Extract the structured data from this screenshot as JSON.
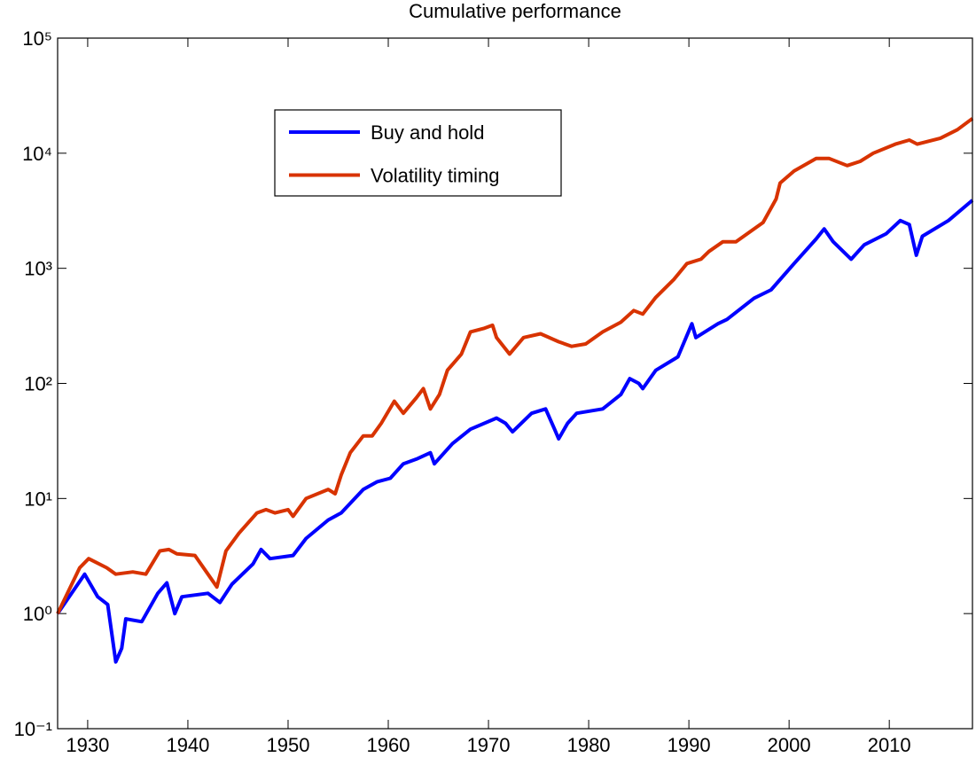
{
  "chart_data": {
    "type": "line",
    "title": "Cumulative performance",
    "log_y": true,
    "legend": "upper left",
    "xlim": [
      1927,
      2018.3
    ],
    "xticks": [
      1930,
      1940,
      1950,
      1960,
      1970,
      1980,
      1990,
      2000,
      2010
    ],
    "ylim": [
      0.1,
      100000
    ],
    "yticks": [
      {
        "value": 0.1,
        "label": "10⁻¹"
      },
      {
        "value": 1,
        "label": "10⁰"
      },
      {
        "value": 10,
        "label": "10¹"
      },
      {
        "value": 100,
        "label": "10²"
      },
      {
        "value": 1000,
        "label": "10³"
      },
      {
        "value": 10000,
        "label": "10⁴"
      },
      {
        "value": 100000,
        "label": "10⁵"
      }
    ],
    "series": [
      {
        "name": "Buy and hold",
        "color": "#0000ff",
        "x": [
          1927.0,
          1929.7,
          1931.0,
          1932.0,
          1932.8,
          1933.4,
          1933.8,
          1935.4,
          1937.0,
          1937.9,
          1938.7,
          1939.4,
          1942.0,
          1943.2,
          1944.4,
          1946.5,
          1947.3,
          1948.2,
          1950.5,
          1951.8,
          1954.0,
          1955.3,
          1957.5,
          1958.9,
          1960.2,
          1961.5,
          1962.8,
          1964.2,
          1964.6,
          1966.4,
          1968.2,
          1970.8,
          1971.7,
          1972.4,
          1974.3,
          1975.7,
          1976.6,
          1977.0,
          1977.9,
          1978.8,
          1981.4,
          1983.2,
          1984.1,
          1985.0,
          1985.4,
          1986.7,
          1988.9,
          1990.3,
          1990.7,
          1992.9,
          1993.8,
          1996.5,
          1998.2,
          2000.5,
          2002.7,
          2003.5,
          2004.4,
          2006.2,
          2007.5,
          2009.7,
          2011.1,
          2012.0,
          2012.7,
          2013.3,
          2015.9,
          2018.3
        ],
        "values": [
          1.0,
          2.2,
          1.4,
          1.2,
          0.38,
          0.5,
          0.9,
          0.85,
          1.5,
          1.85,
          1.0,
          1.4,
          1.5,
          1.25,
          1.8,
          2.7,
          3.6,
          3.0,
          3.2,
          4.5,
          6.5,
          7.5,
          12,
          14,
          15,
          20,
          22,
          25,
          20,
          30,
          40,
          50,
          45,
          38,
          55,
          60,
          40,
          33,
          45,
          55,
          60,
          80,
          110,
          100,
          90,
          130,
          170,
          330,
          250,
          330,
          360,
          550,
          650,
          1100,
          1800,
          2200,
          1700,
          1200,
          1600,
          2000,
          2600,
          2400,
          1300,
          1900,
          2600,
          3900
        ]
      },
      {
        "name": "Volatility timing",
        "color": "#d83300",
        "x": [
          1927.0,
          1929.2,
          1930.1,
          1931.9,
          1932.8,
          1934.5,
          1935.8,
          1937.2,
          1938.1,
          1938.9,
          1940.7,
          1942.0,
          1942.9,
          1943.8,
          1945.1,
          1946.9,
          1947.8,
          1948.7,
          1950.0,
          1950.5,
          1951.8,
          1954.0,
          1954.7,
          1955.3,
          1956.2,
          1957.5,
          1958.4,
          1959.3,
          1960.6,
          1961.5,
          1962.8,
          1963.5,
          1964.2,
          1965.1,
          1965.9,
          1967.3,
          1968.2,
          1969.5,
          1970.4,
          1970.8,
          1972.1,
          1973.5,
          1975.2,
          1977.0,
          1978.3,
          1979.7,
          1981.4,
          1983.2,
          1984.5,
          1985.4,
          1986.7,
          1988.5,
          1989.8,
          1991.2,
          1992.0,
          1993.4,
          1994.7,
          1997.4,
          1998.7,
          1999.1,
          2000.5,
          2002.7,
          2004.0,
          2005.8,
          2007.1,
          2008.4,
          2010.6,
          2012.0,
          2012.8,
          2015.1,
          2016.8,
          2018.3
        ],
        "values": [
          1.0,
          2.5,
          3.0,
          2.5,
          2.2,
          2.3,
          2.2,
          3.5,
          3.6,
          3.3,
          3.2,
          2.2,
          1.7,
          3.5,
          5,
          7.5,
          8,
          7.5,
          8,
          7,
          10,
          12,
          11,
          16,
          25,
          35,
          35,
          45,
          70,
          55,
          75,
          90,
          60,
          80,
          130,
          180,
          280,
          300,
          320,
          250,
          180,
          250,
          270,
          230,
          210,
          220,
          280,
          340,
          430,
          400,
          560,
          800,
          1100,
          1200,
          1400,
          1700,
          1700,
          2500,
          4000,
          5500,
          7000,
          9000,
          9000,
          7800,
          8500,
          10000,
          12000,
          13000,
          12000,
          13500,
          16000,
          20000
        ]
      }
    ]
  }
}
